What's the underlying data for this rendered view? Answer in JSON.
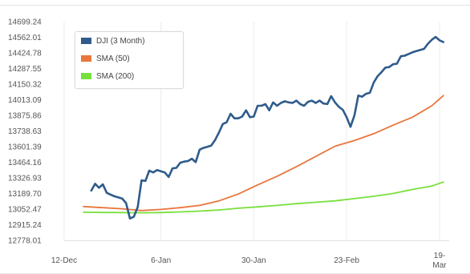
{
  "chart_data": {
    "type": "line",
    "title": "",
    "xlabel": "",
    "ylabel": "",
    "ylim": [
      12778.01,
      14699.24
    ],
    "y_ticks": [
      "14699.24",
      "14562.01",
      "14424.78",
      "14287.55",
      "14150.32",
      "14013.09",
      "13875.86",
      "13738.63",
      "13601.39",
      "13464.16",
      "13326.93",
      "13189.70",
      "13052.47",
      "12915.24",
      "12778.01"
    ],
    "x_ticks": [
      {
        "label": "12-Dec",
        "day": 0
      },
      {
        "label": "6-Jan",
        "day": 25
      },
      {
        "label": "30-Jan",
        "day": 49
      },
      {
        "label": "23-Feb",
        "day": 73
      },
      {
        "label": "19-\nMar",
        "day": 97
      }
    ],
    "grid": true,
    "legend_position": "top-left",
    "series": [
      {
        "name": "DJI (3 Month)",
        "color": "#2f5b8c",
        "points": [
          [
            7,
            13215
          ],
          [
            8,
            13275
          ],
          [
            9,
            13240
          ],
          [
            10,
            13270
          ],
          [
            11,
            13195
          ],
          [
            12,
            13180
          ],
          [
            13,
            13165
          ],
          [
            14,
            13155
          ],
          [
            15,
            13145
          ],
          [
            16,
            13105
          ],
          [
            17,
            12970
          ],
          [
            18,
            12985
          ],
          [
            19,
            13070
          ],
          [
            20,
            13305
          ],
          [
            21,
            13300
          ],
          [
            22,
            13390
          ],
          [
            23,
            13375
          ],
          [
            24,
            13395
          ],
          [
            25,
            13385
          ],
          [
            26,
            13375
          ],
          [
            27,
            13335
          ],
          [
            28,
            13410
          ],
          [
            29,
            13415
          ],
          [
            30,
            13460
          ],
          [
            31,
            13470
          ],
          [
            32,
            13475
          ],
          [
            33,
            13495
          ],
          [
            34,
            13465
          ],
          [
            35,
            13575
          ],
          [
            36,
            13590
          ],
          [
            37,
            13600
          ],
          [
            38,
            13610
          ],
          [
            39,
            13660
          ],
          [
            40,
            13725
          ],
          [
            41,
            13800
          ],
          [
            42,
            13815
          ],
          [
            43,
            13890
          ],
          [
            44,
            13850
          ],
          [
            45,
            13850
          ],
          [
            46,
            13865
          ],
          [
            47,
            13920
          ],
          [
            48,
            13860
          ],
          [
            49,
            13865
          ],
          [
            50,
            13960
          ],
          [
            51,
            13960
          ],
          [
            52,
            13975
          ],
          [
            53,
            13920
          ],
          [
            54,
            13990
          ],
          [
            55,
            13960
          ],
          [
            56,
            13985
          ],
          [
            57,
            14000
          ],
          [
            58,
            13990
          ],
          [
            59,
            13985
          ],
          [
            60,
            14005
          ],
          [
            61,
            13975
          ],
          [
            62,
            13960
          ],
          [
            63,
            13995
          ],
          [
            64,
            14005
          ],
          [
            65,
            13985
          ],
          [
            66,
            14005
          ],
          [
            67,
            13980
          ],
          [
            68,
            13975
          ],
          [
            69,
            14045
          ],
          [
            70,
            13990
          ],
          [
            71,
            13950
          ],
          [
            72,
            13925
          ],
          [
            73,
            13860
          ],
          [
            74,
            13775
          ],
          [
            75,
            13875
          ],
          [
            76,
            14050
          ],
          [
            77,
            14040
          ],
          [
            78,
            14065
          ],
          [
            79,
            14075
          ],
          [
            80,
            14165
          ],
          [
            81,
            14220
          ],
          [
            82,
            14255
          ],
          [
            83,
            14295
          ],
          [
            84,
            14300
          ],
          [
            85,
            14325
          ],
          [
            86,
            14330
          ],
          [
            87,
            14395
          ],
          [
            88,
            14400
          ],
          [
            89,
            14415
          ],
          [
            90,
            14430
          ],
          [
            91,
            14440
          ],
          [
            92,
            14450
          ],
          [
            93,
            14460
          ],
          [
            94,
            14505
          ],
          [
            95,
            14540
          ],
          [
            96,
            14565
          ],
          [
            97,
            14535
          ],
          [
            98,
            14520
          ]
        ]
      },
      {
        "name": "SMA (50)",
        "color": "#e8763d",
        "points": [
          [
            5,
            13075
          ],
          [
            10,
            13065
          ],
          [
            15,
            13055
          ],
          [
            20,
            13040
          ],
          [
            25,
            13050
          ],
          [
            30,
            13065
          ],
          [
            35,
            13085
          ],
          [
            40,
            13125
          ],
          [
            45,
            13185
          ],
          [
            50,
            13265
          ],
          [
            55,
            13340
          ],
          [
            60,
            13425
          ],
          [
            65,
            13515
          ],
          [
            70,
            13605
          ],
          [
            75,
            13655
          ],
          [
            80,
            13715
          ],
          [
            85,
            13790
          ],
          [
            90,
            13860
          ],
          [
            95,
            13960
          ],
          [
            98,
            14050
          ]
        ]
      },
      {
        "name": "SMA (200)",
        "color": "#78e03c",
        "points": [
          [
            5,
            13025
          ],
          [
            10,
            13023
          ],
          [
            15,
            13022
          ],
          [
            20,
            13020
          ],
          [
            25,
            13022
          ],
          [
            30,
            13028
          ],
          [
            35,
            13035
          ],
          [
            40,
            13045
          ],
          [
            45,
            13060
          ],
          [
            50,
            13072
          ],
          [
            55,
            13085
          ],
          [
            60,
            13100
          ],
          [
            65,
            13112
          ],
          [
            70,
            13125
          ],
          [
            75,
            13145
          ],
          [
            80,
            13165
          ],
          [
            85,
            13190
          ],
          [
            90,
            13225
          ],
          [
            95,
            13255
          ],
          [
            98,
            13290
          ]
        ]
      }
    ]
  }
}
